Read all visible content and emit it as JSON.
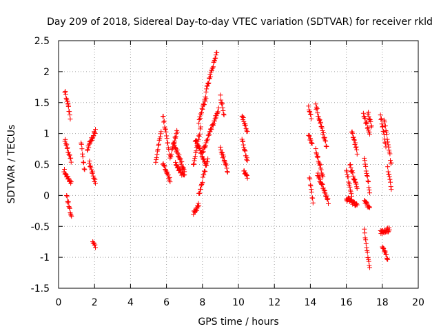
{
  "chart_data": {
    "type": "scatter",
    "title": "Day 209 of 2018, Sidereal Day-to-day VTEC variation (SDTVAR) for receiver rkld",
    "xlabel": "GPS time / hours",
    "ylabel": "SDTVAR / TECUs",
    "xlim": [
      0,
      20
    ],
    "ylim": [
      -1.5,
      2.5
    ],
    "x_ticks": [
      0,
      2,
      4,
      6,
      8,
      10,
      12,
      14,
      16,
      18,
      20
    ],
    "x_tick_labels": [
      "0",
      "2",
      "4",
      "6",
      "8",
      "10",
      "12",
      "14",
      "16",
      "18",
      "20"
    ],
    "y_ticks": [
      -1.5,
      -1,
      -0.5,
      0,
      0.5,
      1,
      1.5,
      2,
      2.5
    ],
    "y_tick_labels": [
      "-1.5",
      "-1",
      "-0.5",
      "0",
      "0.5",
      "1",
      "1.5",
      "2",
      "2.5"
    ],
    "grid": true,
    "marker": "+",
    "color": "#ff0000",
    "tracks": [
      {
        "t0": 0.35,
        "t1": 0.55,
        "y0": 1.68,
        "y1": 1.45
      },
      {
        "t0": 0.5,
        "t1": 0.65,
        "y0": 1.5,
        "y1": 1.25
      },
      {
        "t0": 0.35,
        "t1": 0.7,
        "y0": 0.9,
        "y1": 0.55
      },
      {
        "t0": 0.3,
        "t1": 0.7,
        "y0": 0.4,
        "y1": 0.2
      },
      {
        "t0": 0.45,
        "t1": 0.72,
        "y0": 0.0,
        "y1": -0.35
      },
      {
        "t0": 1.25,
        "t1": 1.45,
        "y0": 0.85,
        "y1": 0.4
      },
      {
        "t0": 1.6,
        "t1": 2.05,
        "y0": 0.75,
        "y1": 1.05
      },
      {
        "t0": 1.7,
        "t1": 2.05,
        "y0": 0.55,
        "y1": 0.2
      },
      {
        "t0": 1.9,
        "t1": 2.05,
        "y0": -0.75,
        "y1": -0.82
      },
      {
        "t0": 5.4,
        "t1": 5.7,
        "y0": 0.55,
        "y1": 1.05
      },
      {
        "t0": 5.8,
        "t1": 6.15,
        "y0": 1.3,
        "y1": 0.7
      },
      {
        "t0": 5.8,
        "t1": 6.2,
        "y0": 0.5,
        "y1": 0.25
      },
      {
        "t0": 6.2,
        "t1": 6.6,
        "y0": 0.6,
        "y1": 1.05
      },
      {
        "t0": 6.4,
        "t1": 7.0,
        "y0": 0.85,
        "y1": 0.4
      },
      {
        "t0": 6.5,
        "t1": 7.0,
        "y0": 0.5,
        "y1": 0.3
      },
      {
        "t0": 7.5,
        "t1": 7.9,
        "y0": 0.5,
        "y1": 1.1
      },
      {
        "t0": 7.5,
        "t1": 7.8,
        "y0": -0.3,
        "y1": -0.15
      },
      {
        "t0": 7.8,
        "t1": 8.3,
        "y0": 0.0,
        "y1": 0.6
      },
      {
        "t0": 7.8,
        "t1": 8.2,
        "y0": 1.2,
        "y1": 1.6
      },
      {
        "t0": 8.2,
        "t1": 8.8,
        "y0": 1.7,
        "y1": 2.3
      },
      {
        "t0": 8.0,
        "t1": 8.9,
        "y0": 0.7,
        "y1": 1.4
      },
      {
        "t0": 7.6,
        "t1": 8.2,
        "y0": 0.9,
        "y1": 0.5
      },
      {
        "t0": 9.0,
        "t1": 9.2,
        "y0": 1.6,
        "y1": 1.3
      },
      {
        "t0": 9.0,
        "t1": 9.4,
        "y0": 0.75,
        "y1": 0.4
      },
      {
        "t0": 10.2,
        "t1": 10.5,
        "y0": 1.3,
        "y1": 1.0
      },
      {
        "t0": 10.2,
        "t1": 10.5,
        "y0": 0.9,
        "y1": 0.55
      },
      {
        "t0": 10.3,
        "t1": 10.5,
        "y0": 0.4,
        "y1": 0.28
      },
      {
        "t0": 13.9,
        "t1": 14.05,
        "y0": 1.45,
        "y1": 1.25
      },
      {
        "t0": 13.9,
        "t1": 14.1,
        "y0": 0.95,
        "y1": 0.85
      },
      {
        "t0": 13.95,
        "t1": 14.15,
        "y0": 0.28,
        "y1": -0.1
      },
      {
        "t0": 14.3,
        "t1": 14.9,
        "y0": 1.45,
        "y1": 0.8
      },
      {
        "t0": 14.3,
        "t1": 14.7,
        "y0": 0.75,
        "y1": 0.3
      },
      {
        "t0": 14.4,
        "t1": 15.0,
        "y0": 0.35,
        "y1": -0.1
      },
      {
        "t0": 16.0,
        "t1": 16.3,
        "y0": 0.4,
        "y1": 0.0
      },
      {
        "t0": 16.3,
        "t1": 16.6,
        "y0": 1.05,
        "y1": 0.7
      },
      {
        "t0": 16.2,
        "t1": 16.6,
        "y0": 0.5,
        "y1": 0.1
      },
      {
        "t0": 16.0,
        "t1": 16.6,
        "y0": -0.05,
        "y1": -0.15
      },
      {
        "t0": 16.95,
        "t1": 17.3,
        "y0": 1.3,
        "y1": 1.0
      },
      {
        "t0": 17.0,
        "t1": 17.3,
        "y0": 0.6,
        "y1": 0.05
      },
      {
        "t0": 17.0,
        "t1": 17.3,
        "y0": -0.1,
        "y1": -0.2
      },
      {
        "t0": 17.0,
        "t1": 17.3,
        "y0": -0.55,
        "y1": -1.2
      },
      {
        "t0": 17.2,
        "t1": 17.4,
        "y0": 1.35,
        "y1": 1.1
      },
      {
        "t0": 17.9,
        "t1": 18.2,
        "y0": 1.3,
        "y1": 0.8
      },
      {
        "t0": 18.1,
        "t1": 18.5,
        "y0": 1.25,
        "y1": 0.5
      },
      {
        "t0": 18.3,
        "t1": 18.5,
        "y0": 0.45,
        "y1": 0.1
      },
      {
        "t0": 17.9,
        "t1": 18.4,
        "y0": -0.6,
        "y1": -0.55
      },
      {
        "t0": 18.0,
        "t1": 18.3,
        "y0": -0.8,
        "y1": -1.05
      }
    ]
  }
}
